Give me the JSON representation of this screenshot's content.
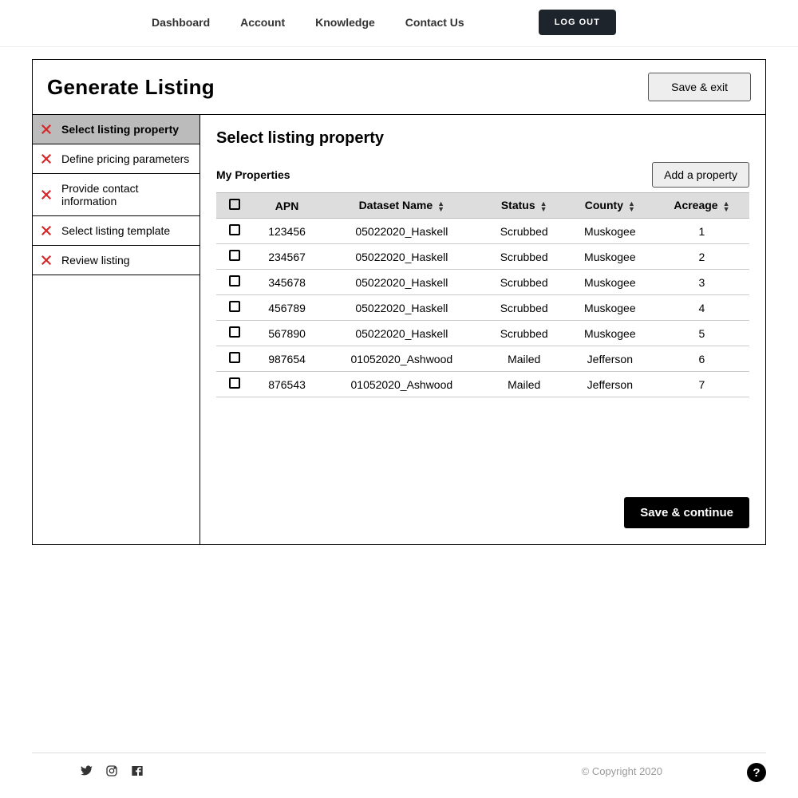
{
  "nav": {
    "items": [
      "Dashboard",
      "Account",
      "Knowledge",
      "Contact Us"
    ],
    "logout": "LOG OUT"
  },
  "card": {
    "title": "Generate Listing",
    "save_exit": "Save & exit"
  },
  "steps": [
    {
      "label": "Select listing property",
      "active": true
    },
    {
      "label": "Define pricing parameters",
      "active": false
    },
    {
      "label": "Provide contact information",
      "active": false
    },
    {
      "label": "Select listing template",
      "active": false
    },
    {
      "label": "Review listing",
      "active": false
    }
  ],
  "main": {
    "title": "Select listing property",
    "subhead": "My Properties",
    "add_btn": "Add a property",
    "save_continue": "Save & continue"
  },
  "table": {
    "columns": [
      "APN",
      "Dataset Name",
      "Status",
      "County",
      "Acreage"
    ],
    "rows": [
      {
        "apn": "123456",
        "dataset": "05022020_Haskell",
        "status": "Scrubbed",
        "county": "Muskogee",
        "acreage": "1"
      },
      {
        "apn": "234567",
        "dataset": "05022020_Haskell",
        "status": "Scrubbed",
        "county": "Muskogee",
        "acreage": "2"
      },
      {
        "apn": "345678",
        "dataset": "05022020_Haskell",
        "status": "Scrubbed",
        "county": "Muskogee",
        "acreage": "3"
      },
      {
        "apn": "456789",
        "dataset": "05022020_Haskell",
        "status": "Scrubbed",
        "county": "Muskogee",
        "acreage": "4"
      },
      {
        "apn": "567890",
        "dataset": "05022020_Haskell",
        "status": "Scrubbed",
        "county": "Muskogee",
        "acreage": "5"
      },
      {
        "apn": "987654",
        "dataset": "01052020_Ashwood",
        "status": "Mailed",
        "county": "Jefferson",
        "acreage": "6"
      },
      {
        "apn": "876543",
        "dataset": "01052020_Ashwood",
        "status": "Mailed",
        "county": "Jefferson",
        "acreage": "7"
      }
    ]
  },
  "footer": {
    "copyright": "© Copyright 2020"
  },
  "colors": {
    "accent_x": "#d62828",
    "logout_bg": "#1e242b"
  }
}
